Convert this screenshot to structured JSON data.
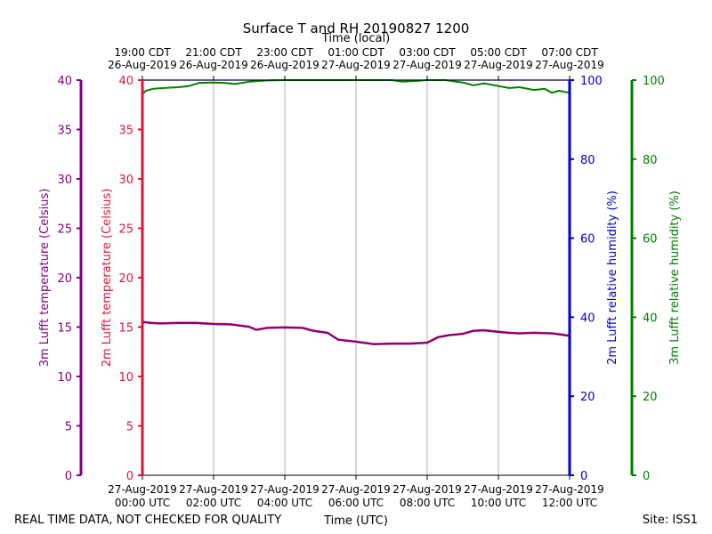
{
  "chart_data": {
    "type": "line",
    "title": "Surface T and RH 20190827 1200",
    "top_axis_title": "Time (local)",
    "xlabel": "Time (UTC)",
    "footer_left": "REAL TIME DATA, NOT CHECKED FOR QUALITY",
    "footer_right": "Site: ISS1",
    "colors": {
      "temp3m": "#800080",
      "temp2m": "#dc143c",
      "rh2m": "#0000cd",
      "rh3m": "#008000",
      "grid": "#b0b0b0"
    },
    "x_range_hours": [
      0,
      12
    ],
    "x_ticks_bottom": [
      {
        "hour": 0,
        "date": "27-Aug-2019",
        "time": "00:00 UTC"
      },
      {
        "hour": 2,
        "date": "27-Aug-2019",
        "time": "02:00 UTC"
      },
      {
        "hour": 4,
        "date": "27-Aug-2019",
        "time": "04:00 UTC"
      },
      {
        "hour": 6,
        "date": "27-Aug-2019",
        "time": "06:00 UTC"
      },
      {
        "hour": 8,
        "date": "27-Aug-2019",
        "time": "08:00 UTC"
      },
      {
        "hour": 10,
        "date": "27-Aug-2019",
        "time": "10:00 UTC"
      },
      {
        "hour": 12,
        "date": "27-Aug-2019",
        "time": "12:00 UTC"
      }
    ],
    "x_ticks_top": [
      {
        "hour": 0,
        "time": "19:00 CDT",
        "date": "26-Aug-2019"
      },
      {
        "hour": 2,
        "time": "21:00 CDT",
        "date": "26-Aug-2019"
      },
      {
        "hour": 4,
        "time": "23:00 CDT",
        "date": "26-Aug-2019"
      },
      {
        "hour": 6,
        "time": "01:00 CDT",
        "date": "27-Aug-2019"
      },
      {
        "hour": 8,
        "time": "03:00 CDT",
        "date": "27-Aug-2019"
      },
      {
        "hour": 10,
        "time": "05:00 CDT",
        "date": "27-Aug-2019"
      },
      {
        "hour": 12,
        "time": "07:00 CDT",
        "date": "27-Aug-2019"
      }
    ],
    "y_axes": {
      "temp3m": {
        "label": "3m Lufft temperature (Celsius)",
        "range": [
          0,
          40
        ],
        "ticks": [
          0,
          5,
          10,
          15,
          20,
          25,
          30,
          35,
          40
        ]
      },
      "temp2m": {
        "label": "2m Lufft temperature (Celsius)",
        "range": [
          0,
          40
        ],
        "ticks": [
          0,
          5,
          10,
          15,
          20,
          25,
          30,
          35,
          40
        ]
      },
      "rh2m": {
        "label": "2m Lufft relative humidity (%)",
        "range": [
          0,
          100
        ],
        "ticks": [
          0,
          20,
          40,
          60,
          80,
          100
        ]
      },
      "rh3m": {
        "label": "3m Lufft relative humidity (%)",
        "range": [
          0,
          100
        ],
        "ticks": [
          0,
          20,
          40,
          60,
          80,
          100
        ]
      }
    },
    "series": [
      {
        "name": "3m Lufft temperature",
        "axis": "temp3m",
        "x": [
          0,
          0.25,
          0.5,
          1,
          1.5,
          2,
          2.5,
          3,
          3.2,
          3.5,
          4,
          4.5,
          4.8,
          5.2,
          5.5,
          6,
          6.5,
          7,
          7.5,
          8,
          8.3,
          8.6,
          9,
          9.3,
          9.6,
          10,
          10.3,
          10.6,
          11,
          11.5,
          11.8,
          12
        ],
        "values": [
          15.5,
          15.4,
          15.35,
          15.4,
          15.4,
          15.3,
          15.25,
          15.0,
          14.7,
          14.9,
          14.95,
          14.9,
          14.6,
          14.4,
          13.7,
          13.5,
          13.25,
          13.3,
          13.3,
          13.4,
          13.95,
          14.15,
          14.3,
          14.6,
          14.65,
          14.5,
          14.4,
          14.35,
          14.4,
          14.35,
          14.2,
          14.1
        ]
      },
      {
        "name": "2m Lufft temperature",
        "axis": "temp2m",
        "x": [
          0,
          0.25,
          0.5,
          1,
          1.5,
          2,
          2.5,
          3,
          3.2,
          3.5,
          4,
          4.5,
          4.8,
          5.2,
          5.5,
          6,
          6.5,
          7,
          7.5,
          8,
          8.3,
          8.6,
          9,
          9.3,
          9.6,
          10,
          10.3,
          10.6,
          11,
          11.5,
          11.8,
          12
        ],
        "values": [
          15.55,
          15.45,
          15.4,
          15.45,
          15.45,
          15.35,
          15.3,
          15.05,
          14.75,
          14.95,
          15.0,
          14.95,
          14.65,
          14.45,
          13.75,
          13.55,
          13.3,
          13.35,
          13.35,
          13.45,
          14.0,
          14.2,
          14.35,
          14.65,
          14.7,
          14.55,
          14.45,
          14.4,
          14.45,
          14.4,
          14.25,
          14.15
        ]
      },
      {
        "name": "2m Lufft relative humidity",
        "axis": "rh2m",
        "x": [
          0,
          12
        ],
        "values": [
          100,
          100
        ]
      },
      {
        "name": "3m Lufft relative humidity",
        "axis": "rh3m",
        "x": [
          0,
          0.1,
          0.3,
          0.6,
          1.0,
          1.3,
          1.6,
          2.0,
          2.3,
          2.6,
          3.0,
          3.5,
          4.0,
          5.0,
          6.0,
          7.0,
          7.3,
          7.7,
          8.0,
          8.5,
          9.0,
          9.3,
          9.6,
          10.0,
          10.3,
          10.6,
          11.0,
          11.3,
          11.5,
          11.7,
          12.0
        ],
        "values": [
          96.5,
          97.3,
          97.8,
          98.0,
          98.2,
          98.5,
          99.3,
          99.4,
          99.3,
          99.0,
          99.6,
          99.9,
          100,
          100,
          100,
          100,
          99.6,
          99.8,
          100,
          100,
          99.4,
          98.7,
          99.2,
          98.5,
          98.0,
          98.2,
          97.5,
          97.8,
          96.8,
          97.3,
          96.8
        ]
      }
    ]
  }
}
